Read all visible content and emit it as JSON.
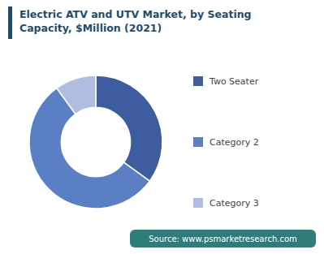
{
  "chart_data": {
    "type": "donut",
    "title": "Electric ATV and UTV Market, by Seating\nCapacity, $Million (2021)",
    "categories": [
      "Two Seater",
      "Category 2",
      "Category 3"
    ],
    "values": [
      35,
      55,
      10
    ],
    "colors": [
      "#3d5da0",
      "#5b7fc4",
      "#b0bde0"
    ],
    "legend": "right",
    "annotations": [
      "Source: www.psmarketresearch.com"
    ]
  }
}
